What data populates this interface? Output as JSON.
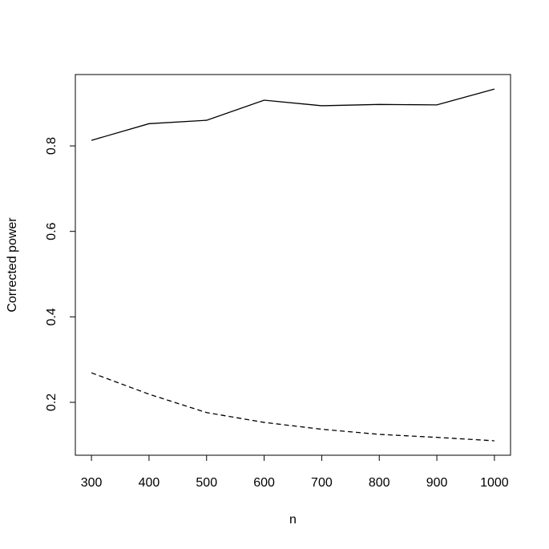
{
  "chart_data": {
    "type": "line",
    "x_label": "n",
    "y_label": "Corrected power",
    "x": [
      300,
      400,
      500,
      600,
      700,
      800,
      900,
      1000
    ],
    "series": [
      {
        "color": "#000000",
        "linestyle": "solid",
        "values": [
          0.813,
          0.852,
          0.86,
          0.907,
          0.894,
          0.897,
          0.896,
          0.933
        ]
      },
      {
        "color": "#000000",
        "linestyle": "dashed",
        "values": [
          0.269,
          0.219,
          0.176,
          0.153,
          0.137,
          0.125,
          0.118,
          0.11
        ]
      }
    ],
    "xlim": [
      272,
      1028
    ],
    "ylim": [
      0.0762,
      0.967
    ],
    "xticks": [
      300,
      400,
      500,
      600,
      700,
      800,
      900,
      1000
    ],
    "yticks": [
      0.2,
      0.4,
      0.6,
      0.8
    ]
  }
}
